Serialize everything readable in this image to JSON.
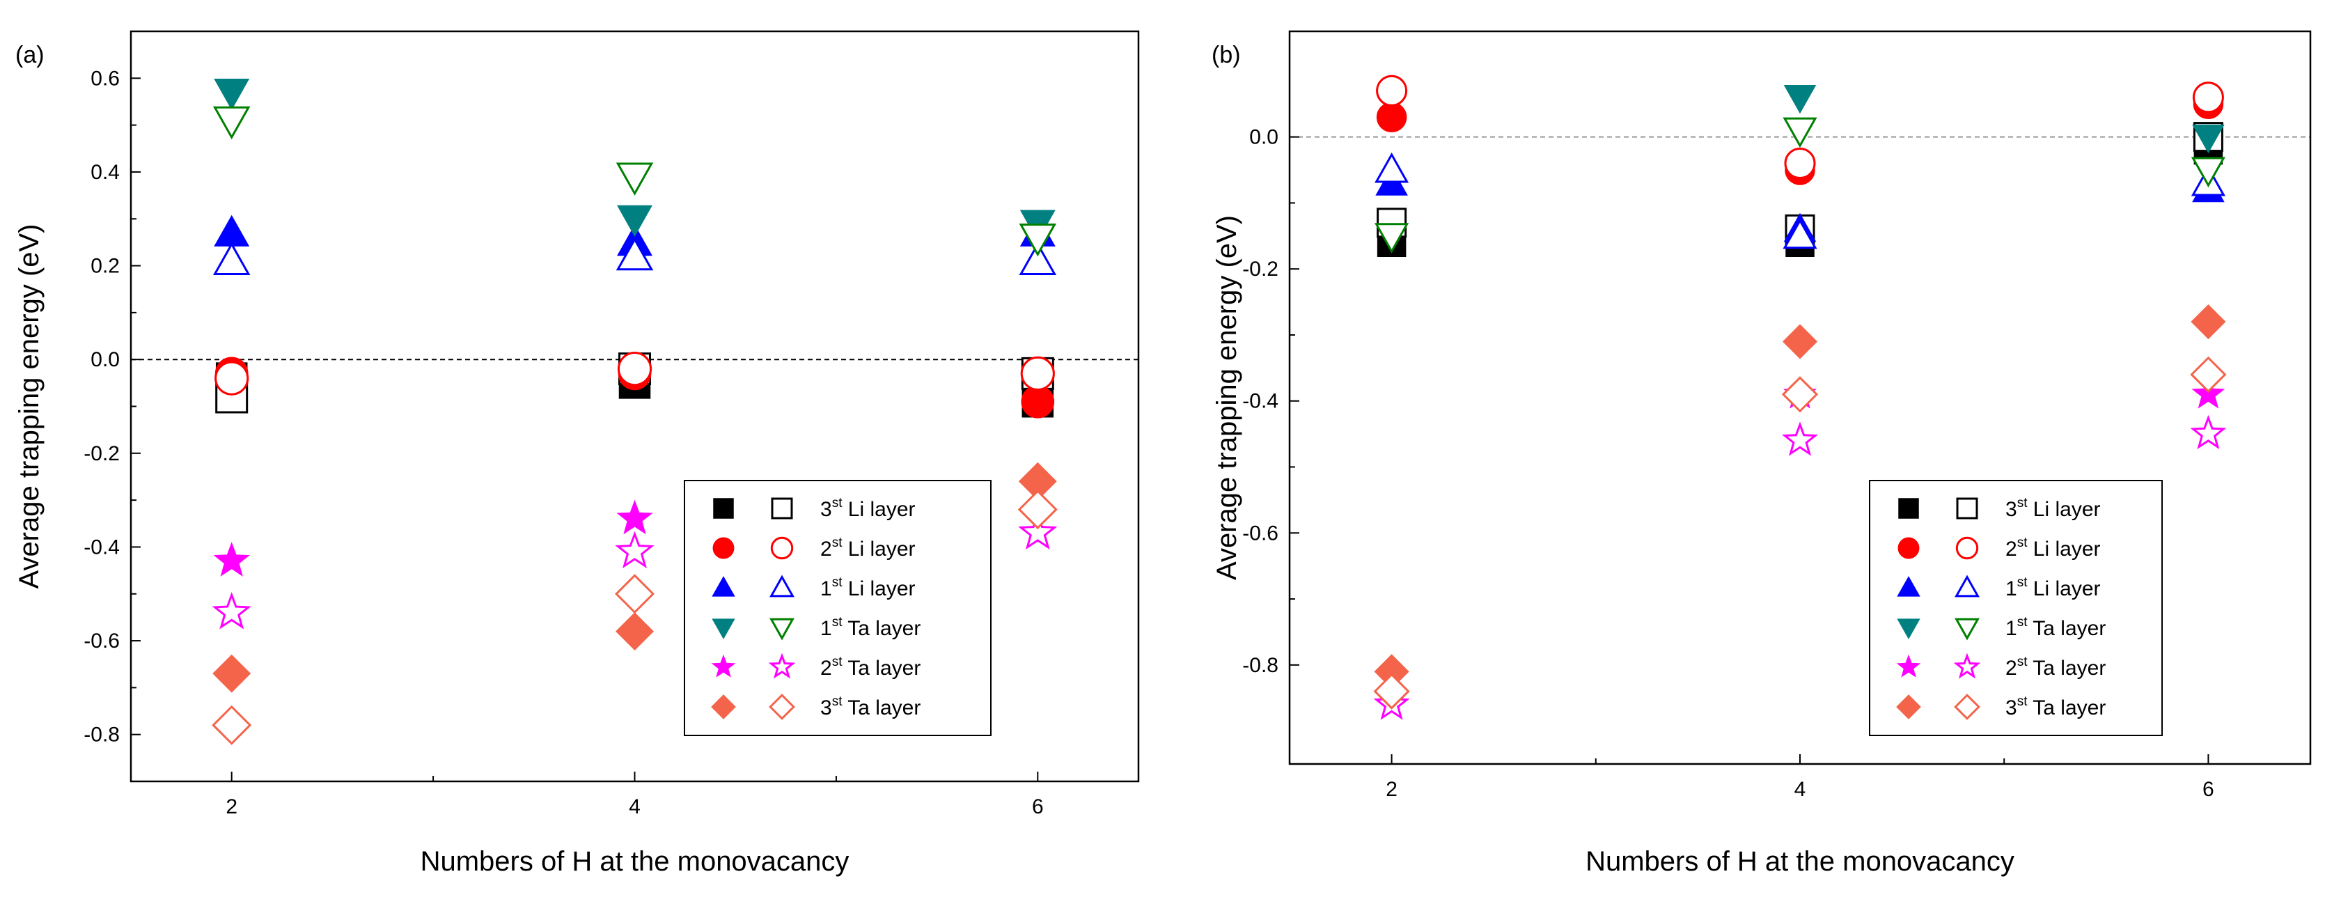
{
  "chart_data": [
    {
      "panel": "(a)",
      "type": "scatter",
      "xlabel": "Numbers of H at the monovacancy",
      "ylabel": "Average trapping energy (eV)",
      "xlim": [
        1.5,
        6.5
      ],
      "ylim": [
        -0.9,
        0.7
      ],
      "xticks": [
        2,
        4,
        6
      ],
      "xminor": [
        3,
        5
      ],
      "xtick_labels": [
        "2",
        "4",
        "6"
      ],
      "yticks": [
        0.6,
        0.4,
        0.2,
        0.0,
        -0.2,
        -0.4,
        -0.6,
        -0.8
      ],
      "ytick_labels": [
        "0.6",
        "0.4",
        "0.2",
        "0.0",
        "-0.2",
        "-0.4",
        "-0.6",
        "-0.8"
      ],
      "reference_line": 0.0,
      "legend_position": "bottom-right",
      "legend_rows": [
        {
          "filled": "black-square",
          "open": "black-square-open",
          "ord": "3",
          "sup": "st",
          "rest": " Li layer"
        },
        {
          "filled": "red-circle",
          "open": "red-circle-open",
          "ord": "2",
          "sup": "st",
          "rest": " Li layer"
        },
        {
          "filled": "blue-triangle-up",
          "open": "blue-triangle-up-open",
          "ord": "1",
          "sup": "st",
          "rest": " Li layer"
        },
        {
          "filled": "teal-triangle-down",
          "open": "green-triangle-down-open",
          "ord": "1",
          "sup": "st",
          "rest": " Ta layer"
        },
        {
          "filled": "magenta-star",
          "open": "magenta-star-open",
          "ord": "2",
          "sup": "st",
          "rest": " Ta layer"
        },
        {
          "filled": "orange-diamond",
          "open": "orange-diamond-open",
          "ord": "3",
          "sup": "st",
          "rest": " Ta layer"
        }
      ],
      "series": [
        {
          "name": "3st Li layer (filled)",
          "marker": "square",
          "filled": true,
          "color": "#000000",
          "x": [
            2,
            4,
            6
          ],
          "y": [
            -0.04,
            -0.05,
            -0.09
          ]
        },
        {
          "name": "3st Li layer (open)",
          "marker": "square",
          "filled": false,
          "color": "#000000",
          "x": [
            2,
            4,
            6
          ],
          "y": [
            -0.08,
            -0.02,
            -0.03
          ]
        },
        {
          "name": "2st Li layer (filled)",
          "marker": "circle",
          "filled": true,
          "color": "#ff0000",
          "x": [
            2,
            4,
            6
          ],
          "y": [
            -0.03,
            -0.03,
            -0.09
          ]
        },
        {
          "name": "2st Li layer (open)",
          "marker": "circle",
          "filled": false,
          "color": "#ff0000",
          "x": [
            2,
            4,
            6
          ],
          "y": [
            -0.04,
            -0.02,
            -0.03
          ]
        },
        {
          "name": "1st Li layer (filled)",
          "marker": "triangle-up",
          "filled": true,
          "color": "#0000ff",
          "x": [
            2,
            4,
            6
          ],
          "y": [
            0.27,
            0.25,
            0.27
          ]
        },
        {
          "name": "1st Li layer (open)",
          "marker": "triangle-up",
          "filled": false,
          "color": "#0000ff",
          "x": [
            2,
            4,
            6
          ],
          "y": [
            0.21,
            0.22,
            0.21
          ]
        },
        {
          "name": "1st Ta layer (filled)",
          "marker": "triangle-down",
          "filled": true,
          "color": "#008080",
          "x": [
            2,
            4,
            6
          ],
          "y": [
            0.57,
            0.3,
            0.29
          ]
        },
        {
          "name": "1st Ta layer (open)",
          "marker": "triangle-down",
          "filled": false,
          "color": "#008000",
          "x": [
            2,
            4,
            6
          ],
          "y": [
            0.51,
            0.39,
            0.26
          ]
        },
        {
          "name": "2st Ta layer (filled)",
          "marker": "star",
          "filled": true,
          "color": "#ff00ff",
          "x": [
            2,
            4,
            6
          ],
          "y": [
            -0.43,
            -0.34,
            -0.37
          ]
        },
        {
          "name": "2st Ta layer (open)",
          "marker": "star",
          "filled": false,
          "color": "#ff00ff",
          "x": [
            2,
            4,
            6
          ],
          "y": [
            -0.54,
            -0.41,
            -0.37
          ]
        },
        {
          "name": "3st Ta layer (filled)",
          "marker": "diamond",
          "filled": true,
          "color": "#f4644a",
          "x": [
            2,
            4,
            6
          ],
          "y": [
            -0.67,
            -0.58,
            -0.26
          ]
        },
        {
          "name": "3st Ta layer (open)",
          "marker": "diamond",
          "filled": false,
          "color": "#f4644a",
          "x": [
            2,
            4,
            6
          ],
          "y": [
            -0.78,
            -0.5,
            -0.32
          ]
        }
      ]
    },
    {
      "panel": "(b)",
      "type": "scatter",
      "xlabel": "Numbers of H at the monovacancy",
      "ylabel": "Average trapping energy (eV)",
      "xlim": [
        1.5,
        6.5
      ],
      "ylim": [
        -0.95,
        0.16
      ],
      "xticks": [
        2,
        4,
        6
      ],
      "xminor": [
        3,
        5
      ],
      "xtick_labels": [
        "2",
        "4",
        "6"
      ],
      "yticks": [
        0.0,
        -0.2,
        -0.4,
        -0.6,
        -0.8
      ],
      "ytick_labels": [
        "0.0",
        "-0.2",
        "-0.4",
        "-0.6",
        "-0.8"
      ],
      "reference_line": 0.0,
      "legend_position": "bottom-right",
      "legend_rows": [
        {
          "filled": "black-square",
          "open": "black-square-open",
          "ord": "3",
          "sup": "st",
          "rest": " Li layer"
        },
        {
          "filled": "red-circle",
          "open": "red-circle-open",
          "ord": "2",
          "sup": "st",
          "rest": " Li layer"
        },
        {
          "filled": "blue-triangle-up",
          "open": "blue-triangle-up-open",
          "ord": "1",
          "sup": "st",
          "rest": " Li layer"
        },
        {
          "filled": "teal-triangle-down",
          "open": "green-triangle-down-open",
          "ord": "1",
          "sup": "st",
          "rest": " Ta layer"
        },
        {
          "filled": "magenta-star",
          "open": "magenta-star-open",
          "ord": "2",
          "sup": "st",
          "rest": " Ta layer"
        },
        {
          "filled": "orange-diamond",
          "open": "orange-diamond-open",
          "ord": "3",
          "sup": "st",
          "rest": " Ta layer"
        }
      ],
      "series": [
        {
          "name": "3st Li layer (filled)",
          "marker": "square",
          "filled": true,
          "color": "#000000",
          "x": [
            2,
            4,
            6
          ],
          "y": [
            -0.16,
            -0.16,
            -0.02
          ]
        },
        {
          "name": "3st Li layer (open)",
          "marker": "square",
          "filled": false,
          "color": "#000000",
          "x": [
            2,
            4,
            6
          ],
          "y": [
            -0.13,
            -0.14,
            0.0
          ]
        },
        {
          "name": "2st Li layer (filled)",
          "marker": "circle",
          "filled": true,
          "color": "#ff0000",
          "x": [
            2,
            4,
            6
          ],
          "y": [
            0.03,
            -0.05,
            0.05
          ]
        },
        {
          "name": "2st Li layer (open)",
          "marker": "circle",
          "filled": false,
          "color": "#ff0000",
          "x": [
            2,
            4,
            6
          ],
          "y": [
            0.07,
            -0.04,
            0.06
          ]
        },
        {
          "name": "1st Li layer (filled)",
          "marker": "triangle-up",
          "filled": true,
          "color": "#0000ff",
          "x": [
            2,
            4,
            6
          ],
          "y": [
            -0.07,
            -0.14,
            -0.08
          ]
        },
        {
          "name": "1st Li layer (open)",
          "marker": "triangle-up",
          "filled": false,
          "color": "#0000ff",
          "x": [
            2,
            4,
            6
          ],
          "y": [
            -0.05,
            -0.15,
            -0.07
          ]
        },
        {
          "name": "1st Ta layer (filled)",
          "marker": "triangle-down",
          "filled": true,
          "color": "#008080",
          "x": [
            2,
            4,
            6
          ],
          "y": [
            -0.15,
            0.06,
            0.0
          ]
        },
        {
          "name": "1st Ta layer (open)",
          "marker": "triangle-down",
          "filled": false,
          "color": "#008000",
          "x": [
            2,
            4,
            6
          ],
          "y": [
            -0.15,
            0.01,
            -0.05
          ]
        },
        {
          "name": "2st Ta layer (filled)",
          "marker": "star",
          "filled": true,
          "color": "#ff00ff",
          "x": [
            2,
            4,
            6
          ],
          "y": [
            -0.86,
            -0.39,
            -0.39
          ]
        },
        {
          "name": "2st Ta layer (open)",
          "marker": "star",
          "filled": false,
          "color": "#ff00ff",
          "x": [
            2,
            4,
            6
          ],
          "y": [
            -0.86,
            -0.46,
            -0.45
          ]
        },
        {
          "name": "3st Ta layer (filled)",
          "marker": "diamond",
          "filled": true,
          "color": "#f4644a",
          "x": [
            2,
            4,
            6
          ],
          "y": [
            -0.81,
            -0.31,
            -0.28
          ]
        },
        {
          "name": "3st Ta layer (open)",
          "marker": "diamond",
          "filled": false,
          "color": "#f4644a",
          "x": [
            2,
            4,
            6
          ],
          "y": [
            -0.84,
            -0.39,
            -0.36
          ]
        }
      ]
    }
  ]
}
